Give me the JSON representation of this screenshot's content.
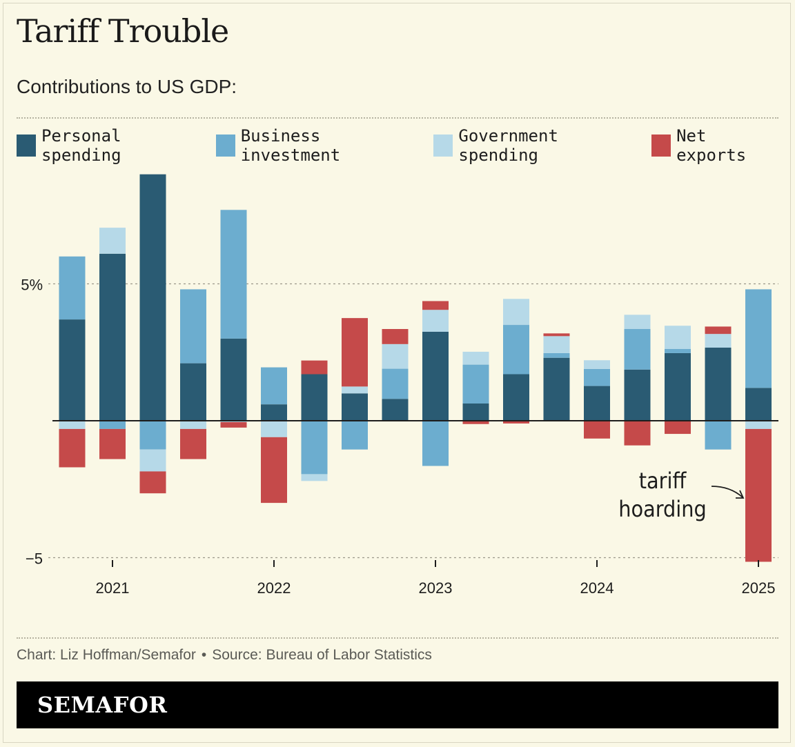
{
  "title": "Tariff Trouble",
  "subtitle": "Contributions to US GDP:",
  "legend": [
    {
      "label": "Personal spending",
      "color": "#2a5b73"
    },
    {
      "label": "Business investment",
      "color": "#6cadcf"
    },
    {
      "label": "Government spending",
      "color": "#b6d9e8"
    },
    {
      "label": "Net exports",
      "color": "#c54a4a"
    }
  ],
  "source": {
    "credit": "Chart: Liz Hoffman/Semafor",
    "separator": "•",
    "source_text": "Source: Bureau of Labor Statistics"
  },
  "brand": "SEMAFOR",
  "chart_data": {
    "type": "bar",
    "stacked": true,
    "ylim": [
      -5.3,
      9.5
    ],
    "yticks": [
      {
        "value": 5,
        "label": "5%"
      },
      {
        "value": -5,
        "label": "−5"
      }
    ],
    "xticks": [
      {
        "index": 1.0,
        "label": "2021"
      },
      {
        "index": 5.0,
        "label": "2022"
      },
      {
        "index": 9.0,
        "label": "2023"
      },
      {
        "index": 13.0,
        "label": "2024"
      },
      {
        "index": 17.0,
        "label": "2025"
      }
    ],
    "quarters": [
      "2020Q4",
      "2021Q1",
      "2021Q2",
      "2021Q3",
      "2021Q4",
      "2022Q1",
      "2022Q2",
      "2022Q3",
      "2022Q4",
      "2023Q1",
      "2023Q2",
      "2023Q3",
      "2023Q4",
      "2024Q1",
      "2024Q2",
      "2024Q3",
      "2024Q4",
      "2025Q1"
    ],
    "series": [
      {
        "name": "Personal spending",
        "color": "#2a5b73",
        "values": [
          3.7,
          6.1,
          9.0,
          2.1,
          3.0,
          0.6,
          1.7,
          1.0,
          0.8,
          3.25,
          0.63,
          1.7,
          2.3,
          1.27,
          1.87,
          2.47,
          2.67,
          1.2
        ]
      },
      {
        "name": "Business investment",
        "color": "#6cadcf",
        "values": [
          2.3,
          -0.3,
          -1.05,
          2.7,
          4.7,
          1.35,
          -1.95,
          -1.05,
          1.1,
          -1.65,
          1.42,
          1.8,
          0.17,
          0.62,
          1.48,
          0.15,
          -1.05,
          3.6
        ]
      },
      {
        "name": "Government spending",
        "color": "#b6d9e8",
        "values": [
          -0.3,
          0.95,
          -0.8,
          -0.3,
          -0.05,
          -0.6,
          -0.25,
          0.25,
          0.9,
          0.8,
          0.47,
          0.95,
          0.62,
          0.32,
          0.52,
          0.85,
          0.5,
          -0.3
        ]
      },
      {
        "name": "Net exports",
        "color": "#c54a4a",
        "values": [
          -1.4,
          -1.1,
          -0.8,
          -1.1,
          -0.2,
          -2.4,
          0.5,
          2.5,
          0.55,
          0.32,
          -0.12,
          -0.1,
          0.1,
          -0.65,
          -0.9,
          -0.48,
          0.27,
          -4.85
        ]
      }
    ],
    "annotation": {
      "text_line1": "tariff",
      "text_line2": "hoarding",
      "target_quarter": "2025Q1"
    }
  }
}
